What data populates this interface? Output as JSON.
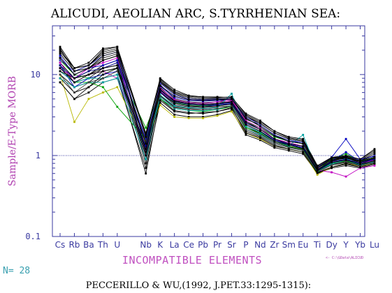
{
  "title": "ALICUDI, AEOLIAN ARC, S.TYRRHENIAN SEA:",
  "footer": "PECCERILLO & WU,(1992, J.PET.33:1295-1315):",
  "n_label": "N= 28",
  "file_label": "<- C:\\GData\\ALICUD",
  "colors": {
    "axis": "#3a3aa0",
    "ylabel": "#b040b0",
    "xlabel": "#c050c0",
    "n_label": "#3aa0b0",
    "file_label": "#b040b0",
    "title": "#000000",
    "tick_labels": "#3a3aa0",
    "reference_line": "#3a3aa0"
  },
  "chart_data": {
    "type": "line",
    "title": "ALICUDI, AEOLIAN ARC, S.TYRRHENIAN SEA:",
    "xlabel": "INCOMPATIBLE ELEMENTS",
    "ylabel": "Sample/E-Type MORB",
    "yscale": "log",
    "ylim": [
      0.1,
      40
    ],
    "yticks": [
      0.1,
      1,
      10
    ],
    "ytick_labels": [
      "0.1",
      "1",
      "10"
    ],
    "reference_line_y": 1,
    "categories": [
      "Cs",
      "Rb",
      "Ba",
      "Th",
      "U",
      "Nb",
      "K",
      "La",
      "Ce",
      "Pb",
      "Pr",
      "Sr",
      "P",
      "Nd",
      "Zr",
      "Sm",
      "Eu",
      "Ti",
      "Dy",
      "Y",
      "Yb",
      "Lu"
    ],
    "x_slots": [
      0,
      1,
      2,
      3,
      4,
      6,
      7,
      8,
      9,
      10,
      11,
      12,
      13,
      14,
      15,
      16,
      17,
      18,
      19,
      20,
      21,
      22
    ],
    "slot_count": 23,
    "n_samples": 28,
    "series": [
      {
        "color": "#000000",
        "values": [
          22,
          12,
          13,
          20,
          22,
          1.8,
          9,
          6.5,
          5.5,
          5.3,
          5.3,
          5.2,
          3.3,
          2.7,
          2.0,
          1.7,
          1.6,
          0.75,
          0.95,
          1.0,
          0.9,
          1.2
        ]
      },
      {
        "color": "#000000",
        "values": [
          20,
          12,
          14,
          21,
          22,
          1.2,
          8.5,
          6.0,
          5.2,
          5.0,
          5.0,
          5.0,
          3.0,
          2.5,
          1.9,
          1.6,
          1.5,
          0.72,
          0.9,
          0.95,
          0.88,
          1.1
        ]
      },
      {
        "color": "#000000",
        "values": [
          18,
          11,
          13,
          19,
          21,
          1.0,
          8.0,
          5.8,
          5.0,
          4.8,
          4.8,
          4.8,
          2.8,
          2.4,
          1.8,
          1.5,
          1.4,
          0.7,
          0.88,
          0.92,
          0.85,
          1.0
        ]
      },
      {
        "color": "#222222",
        "values": [
          16,
          10,
          12,
          16,
          18,
          1.5,
          7.5,
          5.0,
          4.6,
          4.5,
          4.6,
          4.6,
          2.6,
          2.2,
          1.7,
          1.5,
          1.4,
          0.68,
          0.85,
          0.9,
          0.82,
          0.95
        ]
      },
      {
        "color": "#000000",
        "values": [
          14,
          9,
          11,
          15,
          17,
          1.3,
          7.0,
          4.8,
          4.4,
          4.3,
          4.4,
          4.5,
          2.5,
          2.1,
          1.6,
          1.4,
          1.3,
          0.66,
          0.82,
          0.88,
          0.8,
          0.92
        ]
      },
      {
        "color": "#000000",
        "values": [
          12,
          9,
          10,
          13,
          15,
          1.1,
          6.5,
          4.5,
          4.2,
          4.1,
          4.2,
          4.3,
          2.4,
          2.0,
          1.55,
          1.35,
          1.25,
          0.65,
          0.8,
          0.86,
          0.78,
          0.9
        ]
      },
      {
        "color": "#1a1a1a",
        "values": [
          11,
          8,
          9,
          12,
          13,
          0.9,
          6.0,
          4.2,
          4.0,
          3.9,
          4.0,
          4.1,
          2.3,
          1.9,
          1.5,
          1.3,
          1.2,
          0.64,
          0.78,
          0.84,
          0.76,
          0.88
        ]
      },
      {
        "color": "#000000",
        "values": [
          10,
          7,
          8,
          11,
          12,
          0.8,
          5.5,
          4.0,
          3.8,
          3.7,
          3.8,
          4.0,
          2.2,
          1.85,
          1.45,
          1.28,
          1.18,
          0.63,
          0.76,
          0.82,
          0.75,
          0.86
        ]
      },
      {
        "color": "#000000",
        "values": [
          9,
          6,
          7,
          9,
          10,
          0.6,
          5.0,
          3.6,
          3.4,
          3.3,
          3.5,
          3.8,
          2.0,
          1.7,
          1.35,
          1.2,
          1.1,
          0.62,
          0.72,
          0.78,
          0.72,
          0.82
        ]
      },
      {
        "color": "#000000",
        "values": [
          8,
          5,
          6,
          8,
          9,
          0.7,
          4.5,
          3.2,
          3.0,
          3.0,
          3.2,
          3.6,
          1.8,
          1.55,
          1.25,
          1.15,
          1.05,
          0.6,
          0.7,
          0.75,
          0.7,
          0.78
        ]
      },
      {
        "color": "#b8b800",
        "values": [
          10,
          2.6,
          5,
          6,
          7,
          1.4,
          4.2,
          3.0,
          2.9,
          2.9,
          3.1,
          3.5,
          1.9,
          1.6,
          1.3,
          1.2,
          1.1,
          0.58,
          0.72,
          0.8,
          0.74,
          0.8
        ]
      },
      {
        "color": "#00a000",
        "values": [
          13,
          8,
          8,
          7,
          4,
          1.6,
          5.0,
          3.8,
          3.6,
          3.5,
          3.7,
          4.0,
          2.2,
          1.9,
          1.5,
          1.3,
          1.2,
          0.62,
          0.8,
          0.85,
          0.78,
          0.85
        ]
      },
      {
        "color": "#00a000",
        "values": [
          15,
          10,
          9,
          10,
          12,
          2.2,
          6.0,
          4.5,
          4.2,
          4.1,
          4.3,
          4.6,
          2.6,
          2.2,
          1.7,
          1.5,
          1.4,
          0.66,
          0.9,
          1.05,
          0.85,
          0.95
        ]
      },
      {
        "color": "#c000c0",
        "values": [
          14,
          8,
          10,
          11,
          9,
          1.2,
          6.2,
          4.6,
          4.3,
          4.2,
          4.4,
          4.7,
          2.6,
          2.1,
          1.6,
          1.4,
          1.3,
          0.66,
          0.62,
          0.55,
          0.7,
          0.75
        ]
      },
      {
        "color": "#c000c0",
        "values": [
          12,
          9,
          12,
          14,
          16,
          1.0,
          6.8,
          4.9,
          4.5,
          4.4,
          4.6,
          4.9,
          2.7,
          2.2,
          1.6,
          1.45,
          1.3,
          0.68,
          0.82,
          0.9,
          0.8,
          0.88
        ]
      },
      {
        "color": "#0000c0",
        "values": [
          17,
          10,
          12,
          13,
          15,
          1.6,
          7.2,
          5.2,
          4.8,
          4.7,
          4.8,
          5.0,
          2.9,
          2.3,
          1.75,
          1.5,
          1.45,
          0.7,
          0.95,
          1.6,
          0.9,
          0.98
        ]
      },
      {
        "color": "#0000c0",
        "values": [
          13,
          7,
          9,
          10,
          11,
          1.3,
          6.0,
          4.4,
          4.1,
          4.0,
          4.2,
          4.4,
          2.4,
          2.0,
          1.55,
          1.38,
          1.25,
          0.65,
          0.86,
          1.1,
          0.84,
          0.9
        ]
      },
      {
        "color": "#00a0a0",
        "values": [
          11,
          8,
          9,
          9,
          10,
          1.1,
          5.6,
          4.1,
          3.9,
          3.8,
          3.9,
          5.8,
          2.3,
          1.95,
          1.5,
          1.32,
          1.8,
          0.64,
          0.8,
          0.92,
          0.78,
          0.85
        ]
      },
      {
        "color": "#00a0a0",
        "values": [
          9,
          7,
          8,
          8,
          9,
          0.9,
          5.2,
          3.8,
          3.6,
          3.6,
          3.7,
          4.2,
          2.1,
          1.8,
          1.4,
          1.25,
          1.15,
          0.63,
          0.78,
          0.88,
          0.76,
          0.82
        ]
      },
      {
        "color": "#4040c0",
        "values": [
          15,
          11,
          13,
          17,
          19,
          1.4,
          7.8,
          5.6,
          5.0,
          4.9,
          5.0,
          5.1,
          3.0,
          2.4,
          1.8,
          1.55,
          1.45,
          0.72,
          0.92,
          0.98,
          0.88,
          1.0
        ]
      },
      {
        "color": "#000080",
        "values": [
          13,
          9,
          11,
          12,
          14,
          1.2,
          6.4,
          4.6,
          4.3,
          4.2,
          4.3,
          4.5,
          2.5,
          2.1,
          1.6,
          1.4,
          1.3,
          0.66,
          0.84,
          0.9,
          0.8,
          0.9
        ]
      },
      {
        "color": "#000000",
        "values": [
          19,
          12,
          13,
          18,
          20,
          1.7,
          8.2,
          6.0,
          5.2,
          5.0,
          5.1,
          5.0,
          3.1,
          2.5,
          1.9,
          1.6,
          1.5,
          0.7,
          0.92,
          0.96,
          0.86,
          1.05
        ]
      },
      {
        "color": "#000000",
        "values": [
          21,
          11,
          12,
          17,
          19,
          1.9,
          8.8,
          6.2,
          5.4,
          5.2,
          5.2,
          5.3,
          3.2,
          2.6,
          2.0,
          1.65,
          1.55,
          0.73,
          0.94,
          0.98,
          0.9,
          1.15
        ]
      },
      {
        "color": "#404040",
        "values": [
          10,
          6,
          8,
          9,
          11,
          1.5,
          5.4,
          3.9,
          3.7,
          3.7,
          3.8,
          4.1,
          2.1,
          1.75,
          1.4,
          1.25,
          1.15,
          0.64,
          0.76,
          0.84,
          0.74,
          0.84
        ]
      },
      {
        "color": "#000000",
        "values": [
          8,
          5,
          7,
          10,
          12,
          1.0,
          4.8,
          3.5,
          3.3,
          3.4,
          3.5,
          3.9,
          1.9,
          1.65,
          1.3,
          1.2,
          1.1,
          0.61,
          0.72,
          0.8,
          0.72,
          0.8
        ]
      },
      {
        "color": "#000000",
        "values": [
          11,
          9,
          10,
          12,
          13,
          1.1,
          6.6,
          4.7,
          4.4,
          4.3,
          4.4,
          4.6,
          2.6,
          2.1,
          1.6,
          1.4,
          1.3,
          0.67,
          0.86,
          0.94,
          0.82,
          0.93
        ]
      },
      {
        "color": "#000000",
        "values": [
          16,
          10,
          12,
          15,
          17,
          1.4,
          7.3,
          5.4,
          4.9,
          4.8,
          4.9,
          5.0,
          2.9,
          2.3,
          1.75,
          1.5,
          1.4,
          0.7,
          0.88,
          0.95,
          0.84,
          0.96
        ]
      },
      {
        "color": "#000000",
        "values": [
          12,
          8,
          10,
          11,
          12,
          1.2,
          6.1,
          4.4,
          4.1,
          4.0,
          4.1,
          4.3,
          2.4,
          2.0,
          1.5,
          1.35,
          1.22,
          0.65,
          0.82,
          0.88,
          0.78,
          0.86
        ]
      }
    ]
  }
}
